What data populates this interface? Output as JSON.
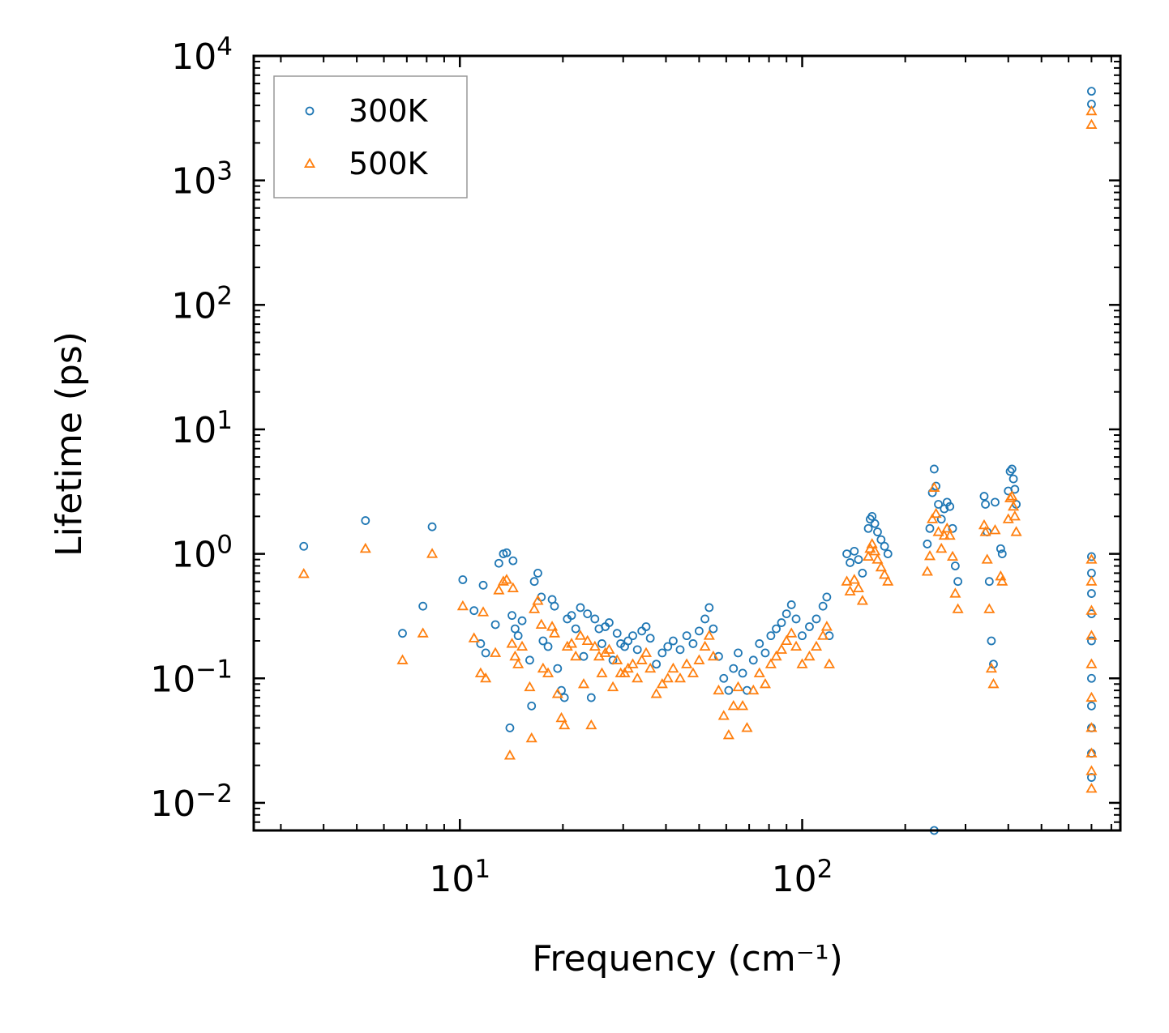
{
  "chart_data": {
    "type": "scatter",
    "xscale": "log",
    "yscale": "log",
    "xlabel": "Frequency (cm⁻¹)",
    "ylabel": "Lifetime (ps)",
    "xlim": [
      2.5,
      850
    ],
    "ylim": [
      0.006,
      10000
    ],
    "x_ticks": [
      {
        "value": 10,
        "base": "10",
        "exp": "1"
      },
      {
        "value": 100,
        "base": "10",
        "exp": "2"
      }
    ],
    "y_ticks": [
      {
        "value": 0.01,
        "base": "10",
        "exp": "−2"
      },
      {
        "value": 0.1,
        "base": "10",
        "exp": "−1"
      },
      {
        "value": 1,
        "base": "10",
        "exp": "0"
      },
      {
        "value": 10,
        "base": "10",
        "exp": "1"
      },
      {
        "value": 100,
        "base": "10",
        "exp": "2"
      },
      {
        "value": 1000,
        "base": "10",
        "exp": "3"
      },
      {
        "value": 10000,
        "base": "10",
        "exp": "4"
      }
    ],
    "legend": {
      "position": "top-left"
    },
    "series": [
      {
        "name": "300K",
        "marker": "circle",
        "color": "#1f77b4",
        "points": [
          [
            3.5,
            1.15
          ],
          [
            5.3,
            1.85
          ],
          [
            6.8,
            0.23
          ],
          [
            7.8,
            0.38
          ],
          [
            8.3,
            1.65
          ],
          [
            10.2,
            0.62
          ],
          [
            11.0,
            0.35
          ],
          [
            11.5,
            0.19
          ],
          [
            11.9,
            0.16
          ],
          [
            11.7,
            0.56
          ],
          [
            12.7,
            0.27
          ],
          [
            13.0,
            0.84
          ],
          [
            13.4,
            1.0
          ],
          [
            13.7,
            1.02
          ],
          [
            14.0,
            0.04
          ],
          [
            14.3,
            0.88
          ],
          [
            14.2,
            0.32
          ],
          [
            14.5,
            0.25
          ],
          [
            14.8,
            0.22
          ],
          [
            15.2,
            0.29
          ],
          [
            16.0,
            0.14
          ],
          [
            16.2,
            0.06
          ],
          [
            16.5,
            0.6
          ],
          [
            16.9,
            0.7
          ],
          [
            17.3,
            0.45
          ],
          [
            17.5,
            0.2
          ],
          [
            18.1,
            0.18
          ],
          [
            18.6,
            0.43
          ],
          [
            18.9,
            0.38
          ],
          [
            19.3,
            0.12
          ],
          [
            19.8,
            0.08
          ],
          [
            20.2,
            0.07
          ],
          [
            20.6,
            0.3
          ],
          [
            21.2,
            0.32
          ],
          [
            21.8,
            0.25
          ],
          [
            22.5,
            0.37
          ],
          [
            23.0,
            0.15
          ],
          [
            23.6,
            0.33
          ],
          [
            24.2,
            0.07
          ],
          [
            24.8,
            0.3
          ],
          [
            25.5,
            0.25
          ],
          [
            26.0,
            0.19
          ],
          [
            26.6,
            0.26
          ],
          [
            27.3,
            0.28
          ],
          [
            28.0,
            0.14
          ],
          [
            28.8,
            0.23
          ],
          [
            29.5,
            0.19
          ],
          [
            30.3,
            0.18
          ],
          [
            31.0,
            0.2
          ],
          [
            32.0,
            0.22
          ],
          [
            33.0,
            0.17
          ],
          [
            34.0,
            0.24
          ],
          [
            35.0,
            0.26
          ],
          [
            36.0,
            0.21
          ],
          [
            37.5,
            0.13
          ],
          [
            39.0,
            0.16
          ],
          [
            40.5,
            0.18
          ],
          [
            42.0,
            0.2
          ],
          [
            44.0,
            0.17
          ],
          [
            46.0,
            0.22
          ],
          [
            48.0,
            0.19
          ],
          [
            50.0,
            0.24
          ],
          [
            52.0,
            0.3
          ],
          [
            53.5,
            0.37
          ],
          [
            55.0,
            0.25
          ],
          [
            57.0,
            0.15
          ],
          [
            59.0,
            0.1
          ],
          [
            61.0,
            0.08
          ],
          [
            63.0,
            0.12
          ],
          [
            65.0,
            0.16
          ],
          [
            67.0,
            0.11
          ],
          [
            69.0,
            0.08
          ],
          [
            72.0,
            0.14
          ],
          [
            75.0,
            0.19
          ],
          [
            78.0,
            0.16
          ],
          [
            81.0,
            0.22
          ],
          [
            84.0,
            0.25
          ],
          [
            87.0,
            0.28
          ],
          [
            90.0,
            0.33
          ],
          [
            93.0,
            0.39
          ],
          [
            96.0,
            0.3
          ],
          [
            100.0,
            0.22
          ],
          [
            105.0,
            0.26
          ],
          [
            110.0,
            0.3
          ],
          [
            115.0,
            0.38
          ],
          [
            118.0,
            0.45
          ],
          [
            120.0,
            0.22
          ],
          [
            135.0,
            1.0
          ],
          [
            138.0,
            0.85
          ],
          [
            142.0,
            1.05
          ],
          [
            146.0,
            0.9
          ],
          [
            150.0,
            0.7
          ],
          [
            156.0,
            1.6
          ],
          [
            158.0,
            1.9
          ],
          [
            160.0,
            2.0
          ],
          [
            163.0,
            1.75
          ],
          [
            166.0,
            1.5
          ],
          [
            170.0,
            1.3
          ],
          [
            174.0,
            1.15
          ],
          [
            178.0,
            1.0
          ],
          [
            232.0,
            1.2
          ],
          [
            236.0,
            1.6
          ],
          [
            240.0,
            3.1
          ],
          [
            243.0,
            4.8
          ],
          [
            246.0,
            3.5
          ],
          [
            250.0,
            2.5
          ],
          [
            255.0,
            1.9
          ],
          [
            260.0,
            2.3
          ],
          [
            265.0,
            2.6
          ],
          [
            270.0,
            2.4
          ],
          [
            275.0,
            1.6
          ],
          [
            280.0,
            0.8
          ],
          [
            285.0,
            0.6
          ],
          [
            340.0,
            2.9
          ],
          [
            343.0,
            2.5
          ],
          [
            347.0,
            1.5
          ],
          [
            352.0,
            0.6
          ],
          [
            357.0,
            0.2
          ],
          [
            362.0,
            0.13
          ],
          [
            366.0,
            2.6
          ],
          [
            380.0,
            1.1
          ],
          [
            384.0,
            1.0
          ],
          [
            400.0,
            3.2
          ],
          [
            405.0,
            4.6
          ],
          [
            410.0,
            4.8
          ],
          [
            414.0,
            4.0
          ],
          [
            418.0,
            3.3
          ],
          [
            422.0,
            2.5
          ],
          [
            243.0,
            0.006
          ],
          [
            700.0,
            5200
          ],
          [
            700.0,
            4100
          ],
          [
            700.0,
            0.95
          ],
          [
            700.0,
            0.7
          ],
          [
            700.0,
            0.48
          ],
          [
            700.0,
            0.33
          ],
          [
            700.0,
            0.2
          ],
          [
            700.0,
            0.1
          ],
          [
            700.0,
            0.06
          ],
          [
            700.0,
            0.04
          ],
          [
            700.0,
            0.025
          ],
          [
            700.0,
            0.016
          ]
        ]
      },
      {
        "name": "500K",
        "marker": "triangle",
        "color": "#ff7f0e",
        "points": [
          [
            3.5,
            0.69
          ],
          [
            5.3,
            1.1
          ],
          [
            6.8,
            0.14
          ],
          [
            7.8,
            0.23
          ],
          [
            8.3,
            1.0
          ],
          [
            10.2,
            0.38
          ],
          [
            11.0,
            0.21
          ],
          [
            11.5,
            0.11
          ],
          [
            11.9,
            0.1
          ],
          [
            11.7,
            0.34
          ],
          [
            12.7,
            0.16
          ],
          [
            13.0,
            0.51
          ],
          [
            13.4,
            0.6
          ],
          [
            13.7,
            0.62
          ],
          [
            14.0,
            0.024
          ],
          [
            14.3,
            0.53
          ],
          [
            14.2,
            0.19
          ],
          [
            14.5,
            0.15
          ],
          [
            14.8,
            0.13
          ],
          [
            15.2,
            0.18
          ],
          [
            16.0,
            0.085
          ],
          [
            16.2,
            0.033
          ],
          [
            16.5,
            0.36
          ],
          [
            16.9,
            0.42
          ],
          [
            17.3,
            0.27
          ],
          [
            17.5,
            0.12
          ],
          [
            18.1,
            0.11
          ],
          [
            18.6,
            0.26
          ],
          [
            18.9,
            0.23
          ],
          [
            19.3,
            0.075
          ],
          [
            19.8,
            0.048
          ],
          [
            20.2,
            0.042
          ],
          [
            20.6,
            0.18
          ],
          [
            21.2,
            0.19
          ],
          [
            21.8,
            0.15
          ],
          [
            22.5,
            0.22
          ],
          [
            23.0,
            0.09
          ],
          [
            23.6,
            0.2
          ],
          [
            24.2,
            0.042
          ],
          [
            24.8,
            0.18
          ],
          [
            25.5,
            0.15
          ],
          [
            26.0,
            0.11
          ],
          [
            26.6,
            0.16
          ],
          [
            27.3,
            0.17
          ],
          [
            28.0,
            0.085
          ],
          [
            28.8,
            0.14
          ],
          [
            29.5,
            0.11
          ],
          [
            30.3,
            0.11
          ],
          [
            31.0,
            0.12
          ],
          [
            32.0,
            0.13
          ],
          [
            33.0,
            0.1
          ],
          [
            34.0,
            0.14
          ],
          [
            35.0,
            0.16
          ],
          [
            36.0,
            0.12
          ],
          [
            37.5,
            0.075
          ],
          [
            39.0,
            0.09
          ],
          [
            40.5,
            0.1
          ],
          [
            42.0,
            0.12
          ],
          [
            44.0,
            0.1
          ],
          [
            46.0,
            0.13
          ],
          [
            48.0,
            0.11
          ],
          [
            50.0,
            0.14
          ],
          [
            52.0,
            0.18
          ],
          [
            53.5,
            0.22
          ],
          [
            55.0,
            0.15
          ],
          [
            57.0,
            0.08
          ],
          [
            59.0,
            0.05
          ],
          [
            61.0,
            0.035
          ],
          [
            63.0,
            0.06
          ],
          [
            65.0,
            0.085
          ],
          [
            67.0,
            0.06
          ],
          [
            69.0,
            0.04
          ],
          [
            72.0,
            0.08
          ],
          [
            75.0,
            0.11
          ],
          [
            78.0,
            0.09
          ],
          [
            81.0,
            0.13
          ],
          [
            84.0,
            0.15
          ],
          [
            87.0,
            0.17
          ],
          [
            90.0,
            0.2
          ],
          [
            93.0,
            0.23
          ],
          [
            96.0,
            0.18
          ],
          [
            100.0,
            0.13
          ],
          [
            105.0,
            0.15
          ],
          [
            110.0,
            0.18
          ],
          [
            115.0,
            0.22
          ],
          [
            118.0,
            0.26
          ],
          [
            120.0,
            0.13
          ],
          [
            135.0,
            0.6
          ],
          [
            138.0,
            0.5
          ],
          [
            142.0,
            0.62
          ],
          [
            146.0,
            0.53
          ],
          [
            150.0,
            0.42
          ],
          [
            156.0,
            0.95
          ],
          [
            158.0,
            1.1
          ],
          [
            160.0,
            1.2
          ],
          [
            163.0,
            1.05
          ],
          [
            166.0,
            0.9
          ],
          [
            170.0,
            0.78
          ],
          [
            174.0,
            0.68
          ],
          [
            178.0,
            0.6
          ],
          [
            232.0,
            0.72
          ],
          [
            236.0,
            0.96
          ],
          [
            240.0,
            1.9
          ],
          [
            243.0,
            3.4
          ],
          [
            246.0,
            2.1
          ],
          [
            250.0,
            1.5
          ],
          [
            255.0,
            1.1
          ],
          [
            260.0,
            1.4
          ],
          [
            265.0,
            1.6
          ],
          [
            270.0,
            1.4
          ],
          [
            275.0,
            0.95
          ],
          [
            280.0,
            0.48
          ],
          [
            285.0,
            0.36
          ],
          [
            340.0,
            1.7
          ],
          [
            343.0,
            1.5
          ],
          [
            347.0,
            0.9
          ],
          [
            352.0,
            0.36
          ],
          [
            357.0,
            0.12
          ],
          [
            362.0,
            0.09
          ],
          [
            366.0,
            1.55
          ],
          [
            380.0,
            0.66
          ],
          [
            384.0,
            0.6
          ],
          [
            400.0,
            1.9
          ],
          [
            405.0,
            2.8
          ],
          [
            410.0,
            2.9
          ],
          [
            414.0,
            2.4
          ],
          [
            418.0,
            2.0
          ],
          [
            422.0,
            1.5
          ],
          [
            700.0,
            3600
          ],
          [
            700.0,
            2800
          ],
          [
            700.0,
            0.9
          ],
          [
            700.0,
            0.6
          ],
          [
            700.0,
            0.35
          ],
          [
            700.0,
            0.22
          ],
          [
            700.0,
            0.13
          ],
          [
            700.0,
            0.07
          ],
          [
            700.0,
            0.04
          ],
          [
            700.0,
            0.025
          ],
          [
            700.0,
            0.018
          ],
          [
            700.0,
            0.013
          ]
        ]
      }
    ]
  }
}
